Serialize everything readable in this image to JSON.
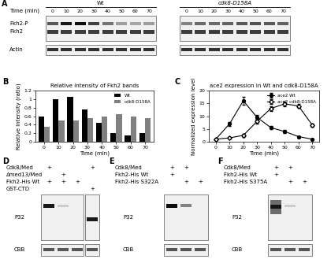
{
  "panel_labels": [
    "A",
    "B",
    "C",
    "D",
    "E",
    "F"
  ],
  "blots": {
    "A": {
      "time_label": "Time (min)",
      "times": [
        0,
        10,
        20,
        30,
        40,
        50,
        60,
        70
      ],
      "groups": [
        "Wt",
        "cdk8-D158A"
      ],
      "rows": [
        "Fkh2-P",
        "Fkh2",
        "Actin"
      ]
    },
    "D": {
      "rows": [
        {
          "name": "Cdk8/Med",
          "marks": [
            "+",
            "",
            "",
            "+"
          ]
        },
        {
          "name": "Δmed13/Med",
          "marks": [
            "",
            "+",
            "",
            ""
          ]
        },
        {
          "name": "Fkh2-His Wt",
          "marks": [
            "+",
            "+",
            "+",
            ""
          ]
        },
        {
          "name": "GST-CTD",
          "marks": [
            "",
            "",
            "",
            "+"
          ]
        }
      ],
      "blot_rows": [
        "P32",
        "CBB"
      ]
    },
    "E": {
      "rows": [
        {
          "name": "Cdk8/Med",
          "marks": [
            "+",
            "+",
            ""
          ]
        },
        {
          "name": "Fkh2-His Wt",
          "marks": [
            "+",
            "",
            ""
          ]
        },
        {
          "name": "Fkh2-His S322A",
          "marks": [
            "",
            "+",
            "+"
          ]
        }
      ],
      "blot_rows": [
        "P32",
        "CBB"
      ]
    },
    "F": {
      "rows": [
        {
          "name": "Cdk8/Med",
          "marks": [
            "+",
            "+",
            ""
          ]
        },
        {
          "name": "Fkh2-His Wt",
          "marks": [
            "+",
            "",
            ""
          ]
        },
        {
          "name": "Fkh2-His S375A",
          "marks": [
            "",
            "+",
            "+"
          ]
        }
      ],
      "blot_rows": [
        "P32",
        "CBB"
      ]
    }
  },
  "chart_data": [
    {
      "type": "bar",
      "title": "Relative intensity of Fkh2 bands",
      "x_label": "Time (min)",
      "y_label": "Relative intensity (ratio)",
      "categories": [
        "0",
        "10",
        "20",
        "30",
        "40",
        "50",
        "60",
        "70"
      ],
      "series": [
        {
          "name": "Wt",
          "color": "#000000",
          "values": [
            0.6,
            1.0,
            1.05,
            0.75,
            0.45,
            0.2,
            0.15,
            0.2
          ]
        },
        {
          "name": "cdk8-D158A",
          "color": "#808080",
          "values": [
            0.35,
            0.5,
            0.5,
            0.55,
            0.6,
            0.65,
            0.6,
            0.55
          ]
        }
      ],
      "ylim": [
        0,
        1.2
      ],
      "yticks": [
        0,
        0.2,
        0.4,
        0.6,
        0.8,
        1,
        1.2
      ],
      "legend": "upper right"
    },
    {
      "type": "line",
      "title": "ace2 expression in Wt and cdk8-D158A",
      "x_label": "Time (min)",
      "y_label": "Normalized expression level",
      "x": [
        0,
        10,
        20,
        30,
        40,
        50,
        60,
        70
      ],
      "series": [
        {
          "name": "ace2 Wt",
          "color": "#000000",
          "marker": "circle",
          "values": [
            1,
            7,
            16,
            9.5,
            5.5,
            4,
            2,
            1
          ],
          "errors": [
            0.2,
            0.8,
            1.5,
            1,
            0.6,
            0.5,
            0.3,
            0.2
          ]
        },
        {
          "name": "ace2 cdk8-D158A",
          "color": "#000000",
          "marker": "open diamond",
          "values": [
            1,
            1.5,
            2.5,
            8,
            13,
            14.8,
            14,
            6.5
          ],
          "errors": [
            0.2,
            0.3,
            0.5,
            1,
            1,
            1,
            0.8,
            0.6
          ]
        }
      ],
      "xlim": [
        -5,
        75
      ],
      "xticks": [
        0,
        10,
        20,
        30,
        40,
        50,
        60,
        70
      ],
      "ylim": [
        0,
        20
      ],
      "yticks": [
        0,
        5,
        10,
        15,
        20
      ],
      "legend": "upper right"
    }
  ]
}
